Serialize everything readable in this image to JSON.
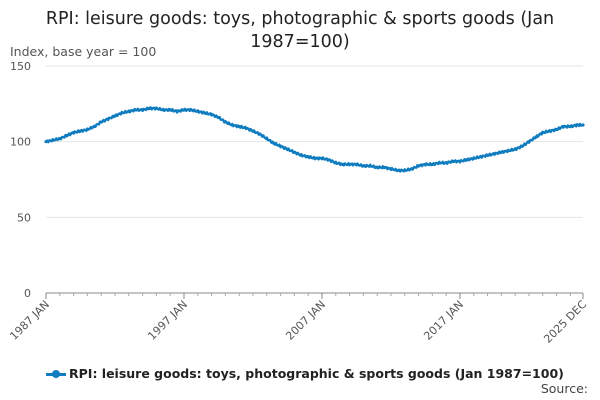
{
  "chart_data": {
    "type": "line",
    "title_line1": "RPI: leisure goods: toys, photographic & sports goods (Jan",
    "title_line2": "1987=100)",
    "ylabel": "Index, base year = 100",
    "ylim": [
      0,
      150
    ],
    "yticks": [
      "0",
      "50",
      "100",
      "150"
    ],
    "xlim": [
      1987.0,
      2025.917
    ],
    "xticks": [
      {
        "label": "1987 JAN",
        "x": 1987.0
      },
      {
        "label": "1997 JAN",
        "x": 1997.0
      },
      {
        "label": "2007 JAN",
        "x": 2007.0
      },
      {
        "label": "2017 JAN",
        "x": 2017.0
      },
      {
        "label": "2025 DEC",
        "x": 2025.917
      }
    ],
    "grid": true,
    "legend_position": "bottom-left",
    "series": [
      {
        "name": "RPI: leisure goods: toys, photographic & sports goods (Jan 1987=100)",
        "color": "#0f7cbf",
        "x": [
          1987.0,
          1987.5,
          1988.0,
          1988.5,
          1989.0,
          1989.5,
          1990.0,
          1990.5,
          1991.0,
          1991.5,
          1992.0,
          1992.5,
          1993.0,
          1993.5,
          1994.0,
          1994.5,
          1995.0,
          1995.5,
          1996.0,
          1996.5,
          1997.0,
          1997.5,
          1998.0,
          1998.5,
          1999.0,
          1999.5,
          2000.0,
          2000.5,
          2001.0,
          2001.5,
          2002.0,
          2002.5,
          2003.0,
          2003.5,
          2004.0,
          2004.5,
          2005.0,
          2005.5,
          2006.0,
          2006.5,
          2007.0,
          2007.5,
          2008.0,
          2008.5,
          2009.0,
          2009.5,
          2010.0,
          2010.5,
          2011.0,
          2011.5,
          2012.0,
          2012.5,
          2013.0,
          2013.5,
          2014.0,
          2014.5,
          2015.0,
          2015.5,
          2016.0,
          2016.5,
          2017.0,
          2017.5,
          2018.0,
          2018.5,
          2019.0,
          2019.5,
          2020.0,
          2020.5,
          2021.0,
          2021.5,
          2022.0,
          2022.5,
          2023.0,
          2023.5,
          2024.0,
          2024.5,
          2025.0,
          2025.5,
          2025.917
        ],
        "values": [
          100,
          101,
          102,
          104,
          106,
          107,
          108,
          110,
          113,
          115,
          117,
          119,
          120,
          121,
          121,
          122,
          122,
          121,
          121,
          120,
          121,
          121,
          120,
          119,
          118,
          116,
          113,
          111,
          110,
          109,
          107,
          105,
          102,
          99,
          97,
          95,
          93,
          91,
          90,
          89,
          89,
          88,
          86,
          85,
          85,
          85,
          84,
          84,
          83,
          83,
          82,
          81,
          81,
          82,
          84,
          85,
          85,
          86,
          86,
          87,
          87,
          88,
          89,
          90,
          91,
          92,
          93,
          94,
          95,
          97,
          100,
          103,
          106,
          107,
          108,
          110,
          110,
          111,
          111
        ]
      }
    ]
  },
  "source_label": "Source:"
}
